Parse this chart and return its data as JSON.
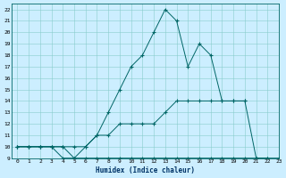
{
  "xlabel": "Humidex (Indice chaleur)",
  "background_color": "#cceeff",
  "grid_color": "#88cccc",
  "line_color": "#006666",
  "xlim": [
    -0.5,
    23
  ],
  "ylim": [
    9,
    22.5
  ],
  "xticks": [
    0,
    1,
    2,
    3,
    4,
    5,
    6,
    7,
    8,
    9,
    10,
    11,
    12,
    13,
    14,
    15,
    16,
    17,
    18,
    19,
    20,
    21,
    22,
    23
  ],
  "yticks": [
    9,
    10,
    11,
    12,
    13,
    14,
    15,
    16,
    17,
    18,
    19,
    20,
    21,
    22
  ],
  "series1_x": [
    0,
    1,
    2,
    3,
    4,
    5,
    6,
    7,
    8,
    9,
    10,
    11,
    12,
    13,
    14,
    15,
    16,
    17,
    18,
    19,
    20,
    21,
    22,
    23
  ],
  "series1_y": [
    10,
    10,
    10,
    10,
    9,
    9,
    9,
    9,
    9,
    9,
    9,
    9,
    9,
    9,
    9,
    9,
    9,
    9,
    9,
    9,
    9,
    9,
    9,
    9
  ],
  "series2_x": [
    0,
    1,
    2,
    3,
    4,
    5,
    6,
    7,
    8,
    9,
    10,
    11,
    12,
    13,
    14,
    15,
    16,
    17,
    18,
    19,
    20,
    21,
    22
  ],
  "series2_y": [
    10,
    10,
    10,
    10,
    10,
    10,
    10,
    11,
    11,
    12,
    12,
    12,
    12,
    13,
    14,
    14,
    14,
    14,
    14,
    14,
    14,
    9,
    9
  ],
  "series3_x": [
    0,
    1,
    2,
    3,
    4,
    5,
    6,
    7,
    8,
    9,
    10,
    11,
    12,
    13,
    14,
    15,
    16,
    17,
    18,
    19,
    20
  ],
  "series3_y": [
    10,
    10,
    10,
    10,
    10,
    9,
    10,
    11,
    13,
    15,
    17,
    18,
    20,
    22,
    21,
    17,
    19,
    18,
    14,
    14,
    14
  ]
}
